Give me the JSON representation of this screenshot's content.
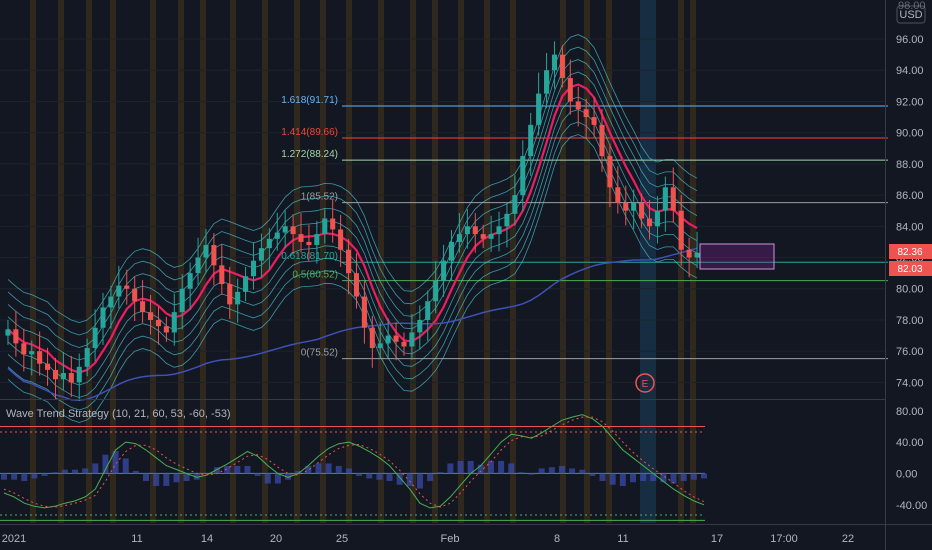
{
  "header": {
    "currency": "USD",
    "top_price_label": "98.00"
  },
  "indicator": {
    "label": "Wave Trend Strategy (10, 21, 60, 53, -60, -53)"
  },
  "event_marker": "E",
  "price_badges": [
    "82.36",
    "82.03"
  ],
  "colors": {
    "background": "#131722",
    "up": "#26a69a",
    "down": "#ef5350",
    "ribbon": "#4dd0e1",
    "ma_main": "#e91e63",
    "ma_slow": "#3f51b5",
    "highlight_bar": "#ff9800",
    "highlight_blue": "#1e6fa5",
    "zone": "#9c27b0"
  },
  "chart_data": [
    {
      "type": "candlestick",
      "x_ticks": [
        "2021",
        "11",
        "14",
        "20",
        "25",
        "Feb",
        "8",
        "11",
        "17",
        "17:00",
        "22"
      ],
      "y_ticks": [
        74.0,
        76.0,
        78.0,
        80.0,
        82.0,
        84.0,
        86.0,
        88.0,
        90.0,
        92.0,
        94.0,
        96.0
      ],
      "ylim": [
        73.0,
        98.5
      ],
      "fibonacci_levels": [
        {
          "label": "1.618(91.71)",
          "value": 91.71,
          "color": "#64b5f6"
        },
        {
          "label": "1.414(89.66)",
          "value": 89.66,
          "color": "#f44336"
        },
        {
          "label": "1.272(88.24)",
          "value": 88.24,
          "color": "#a5d6a7"
        },
        {
          "label": "1(85.52)",
          "value": 85.52,
          "color": "#9e9e9e"
        },
        {
          "label": "0.618(81.70)",
          "value": 81.7,
          "color": "#26a69a"
        },
        {
          "label": "0.5(80.52)",
          "value": 80.52,
          "color": "#4caf50"
        },
        {
          "label": "0(75.52)",
          "value": 75.52,
          "color": "#9e9e9e"
        }
      ],
      "ohlc_close": [
        77.4,
        76.5,
        75.8,
        76.0,
        75.2,
        74.8,
        74.2,
        74.6,
        74.0,
        75.0,
        76.2,
        77.5,
        78.8,
        79.5,
        80.2,
        80.0,
        79.2,
        78.5,
        78.0,
        77.6,
        77.2,
        78.5,
        80.0,
        81.0,
        82.0,
        82.8,
        81.5,
        80.3,
        79.0,
        79.8,
        80.8,
        81.8,
        82.6,
        83.2,
        83.6,
        84.0,
        83.5,
        83.0,
        82.8,
        83.5,
        84.5,
        83.8,
        82.5,
        81.0,
        79.5,
        77.5,
        76.2,
        76.5,
        77.0,
        76.6,
        76.3,
        77.2,
        78.0,
        79.2,
        80.5,
        81.8,
        83.0,
        83.5,
        84.0,
        83.5,
        83.2,
        83.5,
        84.0,
        84.8,
        86.0,
        88.5,
        90.5,
        92.5,
        94.0,
        95.0,
        93.5,
        92.0,
        91.5,
        91.0,
        90.5,
        88.5,
        86.5,
        85.5,
        85.0,
        85.5,
        84.5,
        84.0,
        85.0,
        86.5,
        85.0,
        82.5,
        82.0,
        82.3
      ],
      "ohlc_open": [
        77.0,
        77.4,
        76.5,
        75.8,
        76.0,
        75.2,
        74.8,
        74.2,
        74.6,
        74.0,
        75.0,
        76.2,
        77.5,
        78.8,
        79.5,
        80.2,
        80.0,
        79.2,
        78.5,
        78.0,
        77.6,
        77.2,
        78.5,
        80.0,
        81.0,
        82.0,
        82.8,
        81.5,
        80.3,
        79.0,
        79.8,
        80.8,
        81.8,
        82.6,
        83.2,
        83.6,
        84.0,
        83.5,
        83.0,
        82.8,
        83.5,
        84.5,
        83.8,
        82.5,
        81.0,
        79.5,
        77.5,
        76.2,
        76.5,
        77.0,
        76.6,
        76.3,
        77.2,
        78.0,
        79.2,
        80.5,
        81.8,
        83.0,
        83.5,
        84.0,
        83.5,
        83.2,
        83.5,
        84.0,
        84.8,
        86.0,
        88.5,
        90.5,
        92.5,
        94.0,
        95.0,
        93.5,
        92.0,
        91.5,
        91.0,
        90.5,
        88.5,
        86.5,
        85.5,
        85.0,
        85.5,
        84.5,
        84.0,
        85.0,
        86.5,
        85.0,
        82.5,
        82.0
      ]
    },
    {
      "type": "line",
      "title": "Wave Trend Strategy (10, 21, 60, 53, -60, -53)",
      "y_ticks": [
        80.0,
        40.0,
        0.0,
        -40.0
      ],
      "ylim": [
        -62,
        90
      ],
      "levels": [
        60,
        53,
        -53,
        -60
      ],
      "series": [
        {
          "values": [
            -25,
            -30,
            -38,
            -42,
            -44,
            -42,
            -38,
            -35,
            -30,
            -20,
            5,
            30,
            40,
            38,
            30,
            20,
            10,
            5,
            0,
            -5,
            -2,
            5,
            12,
            20,
            28,
            22,
            10,
            0,
            -5,
            0,
            10,
            22,
            32,
            38,
            40,
            35,
            28,
            20,
            10,
            -5,
            -20,
            -38,
            -44,
            -42,
            -30,
            -15,
            0,
            10,
            25,
            40,
            50,
            48,
            45,
            52,
            60,
            68,
            72,
            75,
            70,
            60,
            45,
            30,
            20,
            10,
            0,
            -10,
            -20,
            -28,
            -35,
            -40
          ]
        },
        {
          "values": [
            -20,
            -25,
            -32,
            -38,
            -42,
            -43,
            -41,
            -38,
            -34,
            -28,
            -10,
            12,
            28,
            36,
            36,
            30,
            20,
            12,
            6,
            0,
            -2,
            0,
            6,
            14,
            22,
            24,
            18,
            8,
            0,
            -2,
            4,
            14,
            24,
            32,
            36,
            37,
            32,
            25,
            16,
            4,
            -10,
            -26,
            -38,
            -43,
            -38,
            -25,
            -10,
            3,
            15,
            30,
            42,
            47,
            46,
            48,
            55,
            62,
            68,
            72,
            72,
            66,
            54,
            40,
            27,
            16,
            6,
            -3,
            -12,
            -22,
            -30,
            -36
          ]
        }
      ]
    }
  ]
}
